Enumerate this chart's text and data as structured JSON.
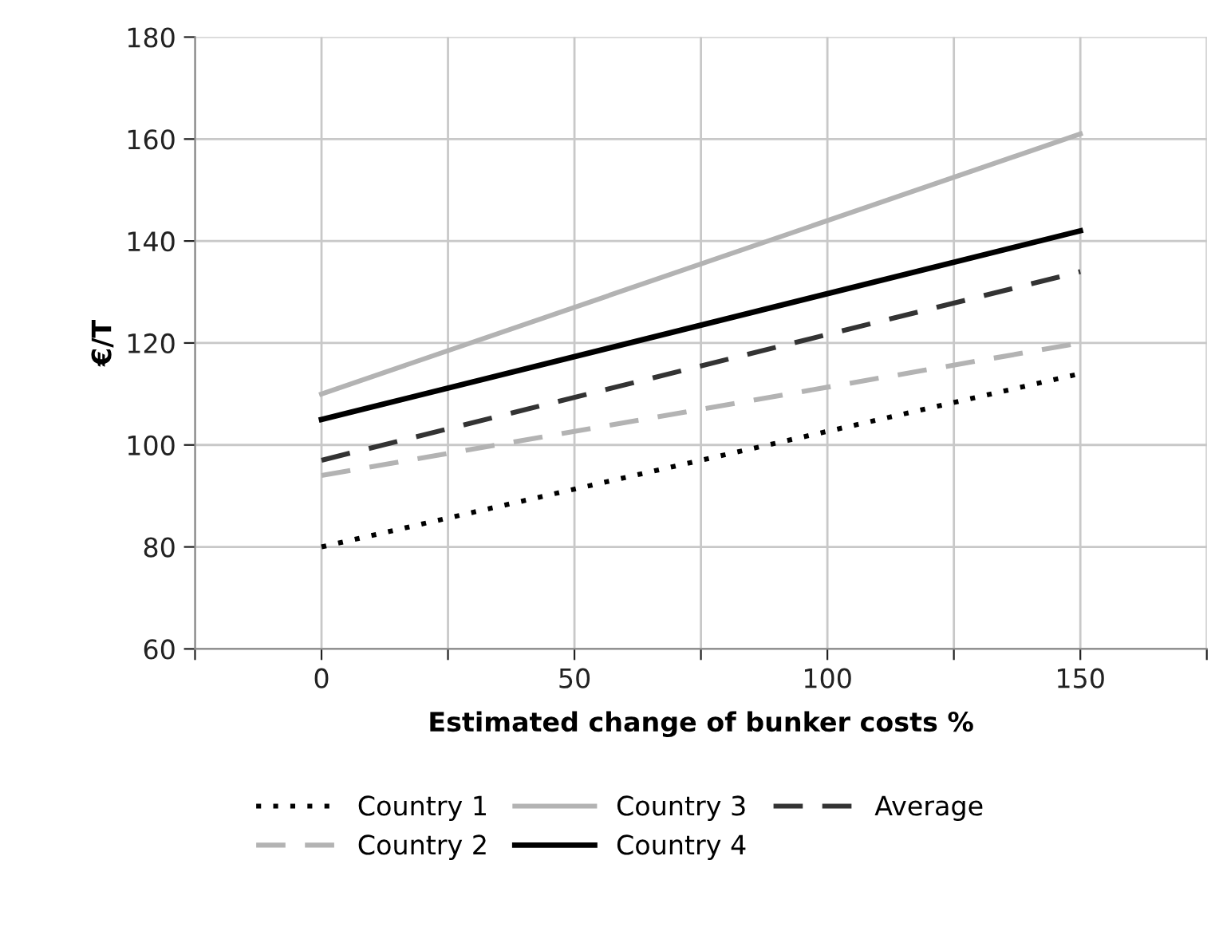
{
  "chart_data": {
    "type": "line",
    "xlabel": "Estimated change of bunker costs %",
    "ylabel": "€/T",
    "x": [
      0,
      150
    ],
    "series": [
      {
        "name": "Country 1",
        "color": "#000000",
        "values": [
          80,
          114
        ],
        "line_style": "dotted"
      },
      {
        "name": "Country 2",
        "color": "#b3b3b3",
        "values": [
          94,
          120
        ],
        "line_style": "dashed"
      },
      {
        "name": "Country 3",
        "color": "#b3b3b3",
        "values": [
          110,
          161
        ],
        "line_style": "solid"
      },
      {
        "name": "Country 4",
        "color": "#000000",
        "values": [
          105,
          142
        ],
        "line_style": "solid"
      },
      {
        "name": "Average",
        "color": "#333333",
        "values": [
          97,
          134
        ],
        "line_style": "dashed"
      }
    ],
    "xlim": [
      -25,
      175
    ],
    "xticks": [
      {
        "value": -25,
        "label": null
      },
      0,
      {
        "value": 25,
        "label": null
      },
      50,
      {
        "value": 75,
        "label": null
      },
      100,
      {
        "value": 125,
        "label": null
      },
      150,
      {
        "value": 175,
        "label": null
      }
    ],
    "ylim": [
      60,
      180
    ],
    "yticks": [
      60,
      80,
      100,
      120,
      140,
      160,
      180
    ],
    "grid": true,
    "legend": "bottom",
    "marker": "none"
  }
}
